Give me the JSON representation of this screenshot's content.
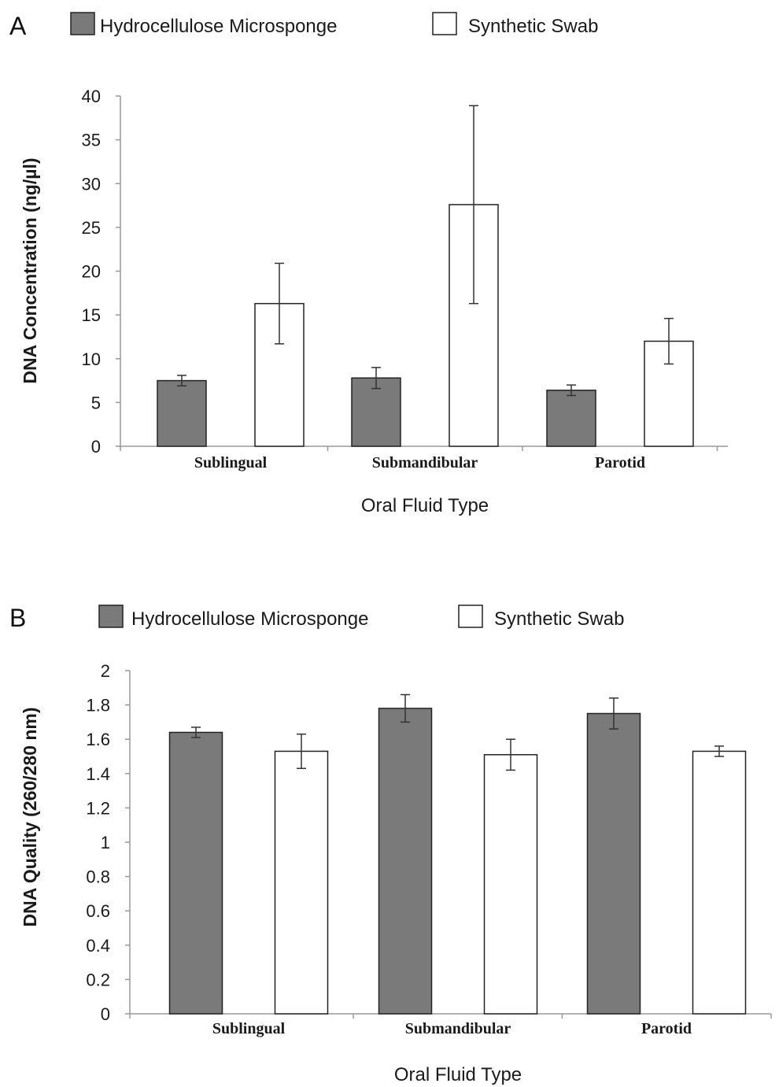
{
  "chart_data": [
    {
      "type": "bar",
      "panel_label": "A",
      "categories": [
        "Sublingual",
        "Submandibular",
        "Parotid"
      ],
      "xlabel": "Oral Fluid Type",
      "ylabel": "DNA Concentration (ng/µl)",
      "ylim": [
        0,
        40
      ],
      "yticks": [
        "0",
        "5",
        "10",
        "15",
        "20",
        "25",
        "30",
        "35",
        "40"
      ],
      "grid": false,
      "legend_position": "top",
      "series": [
        {
          "name": "Hydrocellulose Microsponge",
          "color": "#7a7a7a",
          "values": [
            7.5,
            7.8,
            6.4
          ],
          "errors": [
            0.6,
            1.2,
            0.6
          ]
        },
        {
          "name": "Synthetic Swab",
          "color": "#ffffff",
          "values": [
            16.3,
            27.6,
            12.0
          ],
          "errors": [
            4.6,
            11.3,
            2.6
          ]
        }
      ]
    },
    {
      "type": "bar",
      "panel_label": "B",
      "categories": [
        "Sublingual",
        "Submandibular",
        "Parotid"
      ],
      "xlabel": "Oral Fluid Type",
      "ylabel": "DNA Quality (260/280 nm)",
      "ylim": [
        0,
        2
      ],
      "yticks": [
        "0",
        "0.2",
        "0.4",
        "0.6",
        "0.8",
        "1",
        "1.2",
        "1.4",
        "1.6",
        "1.8",
        "2"
      ],
      "grid": false,
      "legend_position": "top",
      "series": [
        {
          "name": "Hydrocellulose Microsponge",
          "color": "#7a7a7a",
          "values": [
            1.64,
            1.78,
            1.75
          ],
          "errors": [
            0.03,
            0.08,
            0.09
          ]
        },
        {
          "name": "Synthetic Swab",
          "color": "#ffffff",
          "values": [
            1.53,
            1.51,
            1.53
          ],
          "errors": [
            0.1,
            0.09,
            0.03
          ]
        }
      ]
    }
  ]
}
